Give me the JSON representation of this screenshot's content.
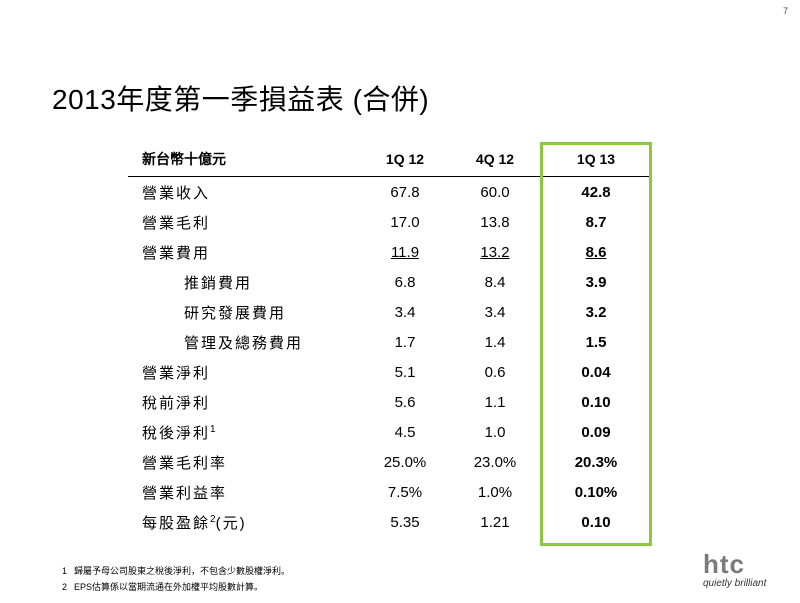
{
  "page_number": "7",
  "title": "2013年度第一季損益表 (合併)",
  "table": {
    "header": {
      "label": "新台幣十億元",
      "col1": "1Q 12",
      "col2": "4Q 12",
      "col3": "1Q 13"
    },
    "rows": [
      {
        "label": "營業收入",
        "sup": "",
        "col1": "67.8",
        "col2": "60.0",
        "col3": "42.8"
      },
      {
        "label": "營業毛利",
        "sup": "",
        "col1": "17.0",
        "col2": "13.8",
        "col3": "8.7"
      },
      {
        "label": "營業費用",
        "sup": "",
        "col1": "11.9",
        "col2": "13.2",
        "col3": "8.6"
      },
      {
        "label": "推銷費用",
        "sup": "",
        "col1": "6.8",
        "col2": "8.4",
        "col3": "3.9"
      },
      {
        "label": "研究發展費用",
        "sup": "",
        "col1": "3.4",
        "col2": "3.4",
        "col3": "3.2"
      },
      {
        "label": "管理及總務費用",
        "sup": "",
        "col1": "1.7",
        "col2": "1.4",
        "col3": "1.5"
      },
      {
        "label": "營業淨利",
        "sup": "",
        "col1": "5.1",
        "col2": "0.6",
        "col3": "0.04"
      },
      {
        "label": "稅前淨利",
        "sup": "",
        "col1": "5.6",
        "col2": "1.1",
        "col3": "0.10"
      },
      {
        "label": "稅後淨利",
        "sup": "1",
        "col1": "4.5",
        "col2": "1.0",
        "col3": "0.09"
      },
      {
        "label": "營業毛利率",
        "sup": "",
        "col1": "25.0%",
        "col2": "23.0%",
        "col3": "20.3%"
      },
      {
        "label": "營業利益率",
        "sup": "",
        "col1": "7.5%",
        "col2": "1.0%",
        "col3": "0.10%"
      },
      {
        "label": "每股盈餘",
        "sup": "2",
        "label_suffix": "(元)",
        "col1": "5.35",
        "col2": "1.21",
        "col3": "0.10"
      }
    ]
  },
  "footnotes": [
    {
      "num": "1",
      "text": "歸屬予母公司股東之稅後淨利，不包含少數股權淨利。"
    },
    {
      "num": "2",
      "text": "EPS估算係以當期流通在外加權平均股數計算。"
    }
  ],
  "logo": {
    "word": "htc",
    "tagline": "quietly brilliant"
  },
  "colors": {
    "highlight_border": "#8dc63f",
    "logo_gray": "#7a7a7a"
  }
}
